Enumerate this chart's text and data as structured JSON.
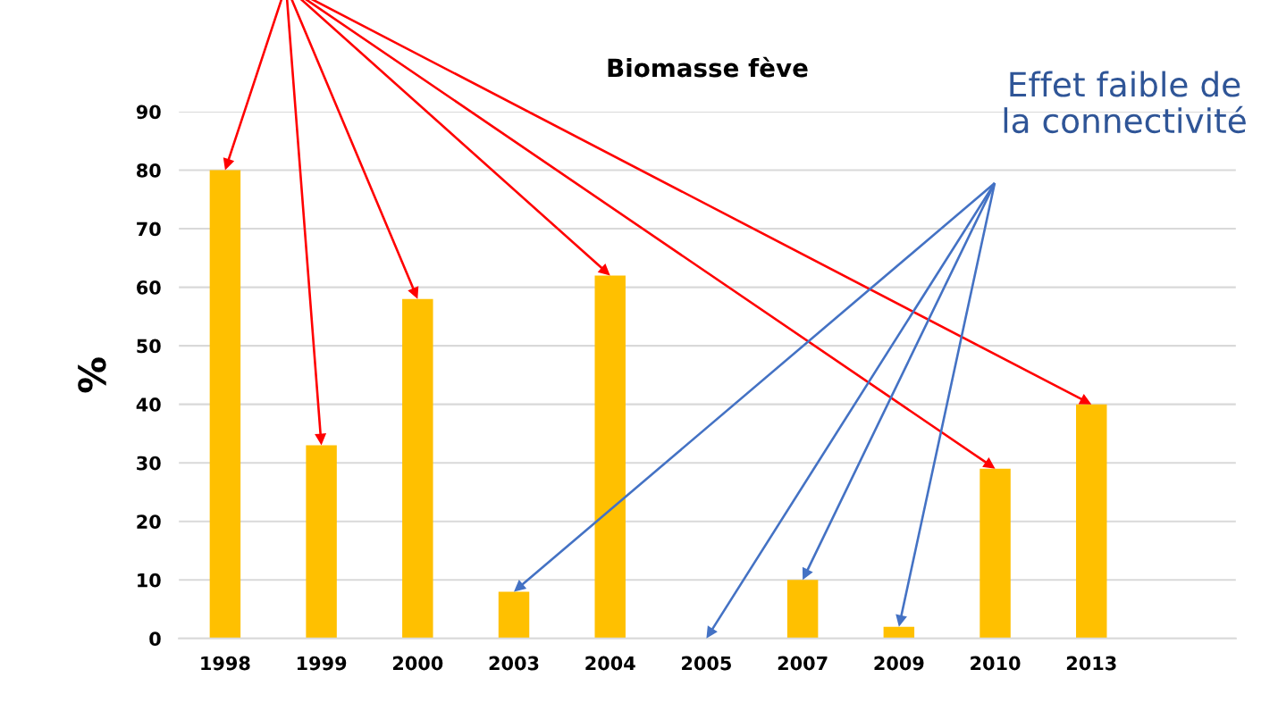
{
  "chart_data": {
    "type": "bar",
    "title": "Biomasse fève",
    "ylabel": "%",
    "categories": [
      "1998",
      "1999",
      "2000",
      "2003",
      "2004",
      "2005",
      "2007",
      "2009",
      "2010",
      "2013"
    ],
    "values": [
      80,
      33,
      58,
      8,
      62,
      0,
      10,
      2,
      29,
      40
    ],
    "color": "#ffc000",
    "ylim": [
      0,
      90
    ],
    "yticks": [
      0,
      10,
      20,
      30,
      40,
      50,
      60,
      70,
      80,
      90
    ],
    "grid": "y",
    "legend": false,
    "annotations": [
      "Effet faible de\nla connectivité"
    ]
  }
}
